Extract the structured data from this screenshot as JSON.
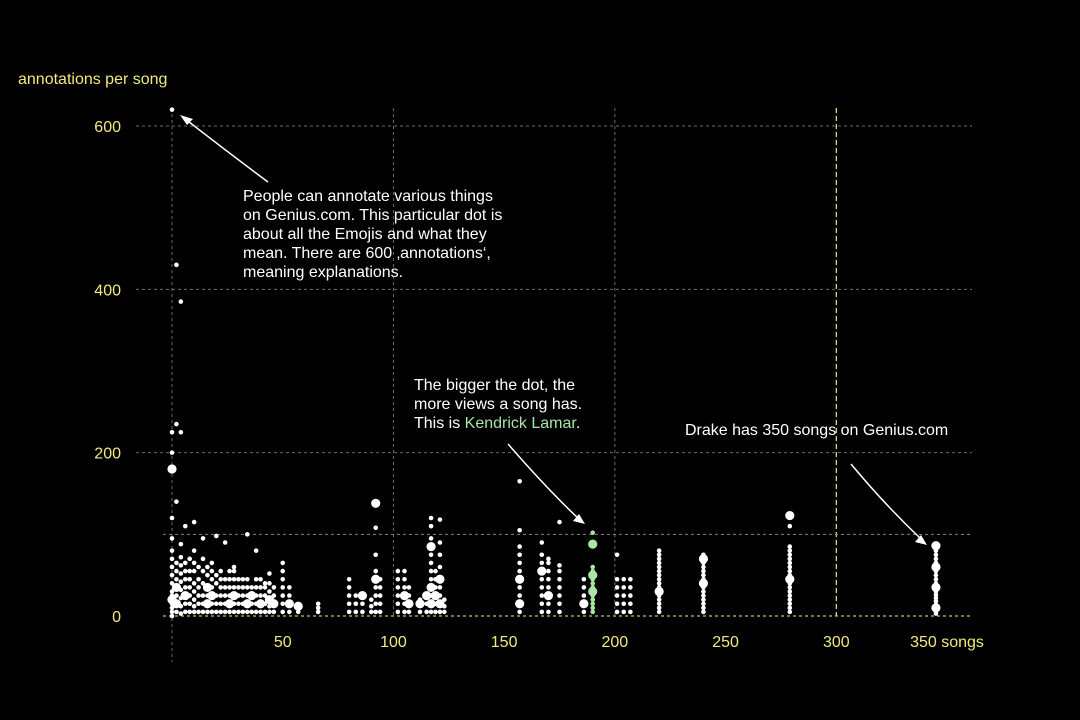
{
  "chart_data": {
    "type": "scatter",
    "title": "",
    "ylabel": "annotations per song",
    "xlabel": "",
    "xlim": [
      -4,
      362
    ],
    "ylim": [
      0,
      620
    ],
    "x_ticks": [
      50,
      100,
      150,
      200,
      250,
      300
    ],
    "x_tick_last": 350,
    "x_tick_last_label": "350 songs",
    "y_ticks": [
      0,
      200,
      400,
      600
    ],
    "grid": true,
    "size_meaning": "views",
    "colors": {
      "points": "#ffffff",
      "highlight": "#a8e6a2",
      "axis_text": "#f2ea7c",
      "background": "#000000"
    },
    "reference_lines": {
      "x": 300,
      "y": 100
    },
    "columns": [
      {
        "x": 0,
        "ys": [
          0,
          5,
          10,
          15,
          20,
          25,
          30,
          40,
          50,
          60,
          70,
          80,
          95,
          120,
          180,
          200,
          225,
          620
        ],
        "big": [
          20,
          180
        ]
      },
      {
        "x": 2,
        "ys": [
          5,
          15,
          25,
          35,
          45,
          55,
          65,
          140,
          235,
          430
        ],
        "big": [
          15,
          35
        ]
      },
      {
        "x": 4,
        "ys": [
          3,
          12,
          22,
          32,
          42,
          52,
          62,
          72,
          88,
          225,
          385
        ],
        "big": [
          20
        ]
      },
      {
        "x": 6,
        "ys": [
          5,
          15,
          25,
          35,
          45,
          55,
          65,
          110
        ],
        "big": [
          25
        ]
      },
      {
        "x": 8,
        "ys": [
          5,
          15,
          25,
          35,
          45,
          55,
          70
        ],
        "big": [
          10,
          30
        ]
      },
      {
        "x": 10,
        "ys": [
          5,
          12,
          20,
          30,
          40,
          55,
          65,
          80,
          115
        ],
        "big": [
          18
        ]
      },
      {
        "x": 12,
        "ys": [
          5,
          15,
          25,
          35,
          45,
          60
        ],
        "big": [
          12
        ]
      },
      {
        "x": 14,
        "ys": [
          5,
          15,
          25,
          40,
          55,
          70,
          95
        ],
        "big": [
          20
        ]
      },
      {
        "x": 16,
        "ys": [
          5,
          15,
          25,
          35,
          50,
          60
        ],
        "big": [
          15,
          35
        ]
      },
      {
        "x": 18,
        "ys": [
          5,
          15,
          25,
          35,
          45,
          55,
          65
        ],
        "big": [
          25
        ]
      },
      {
        "x": 20,
        "ys": [
          5,
          15,
          25,
          40,
          50,
          98
        ],
        "big": [
          12
        ]
      },
      {
        "x": 22,
        "ys": [
          5,
          15,
          25,
          35,
          45,
          55
        ],
        "big": [
          20
        ]
      },
      {
        "x": 24,
        "ys": [
          5,
          15,
          25,
          35,
          45,
          90
        ],
        "big": [
          30
        ]
      },
      {
        "x": 26,
        "ys": [
          5,
          15,
          25,
          35,
          45,
          55
        ],
        "big": [
          15
        ]
      },
      {
        "x": 28,
        "ys": [
          5,
          15,
          25,
          35,
          45,
          55,
          60
        ],
        "big": [
          25
        ]
      },
      {
        "x": 30,
        "ys": [
          5,
          15,
          25,
          35,
          45
        ],
        "big": [
          10
        ]
      },
      {
        "x": 32,
        "ys": [
          5,
          15,
          25,
          35,
          45
        ],
        "big": [
          20
        ]
      },
      {
        "x": 34,
        "ys": [
          5,
          15,
          25,
          35,
          45,
          100
        ],
        "big": [
          15
        ]
      },
      {
        "x": 36,
        "ys": [
          5,
          15,
          25,
          35
        ],
        "big": [
          25
        ]
      },
      {
        "x": 38,
        "ys": [
          5,
          15,
          25,
          35,
          45,
          80
        ],
        "big": [
          20
        ]
      },
      {
        "x": 40,
        "ys": [
          5,
          15,
          25,
          35,
          45
        ],
        "big": [
          15
        ]
      },
      {
        "x": 42,
        "ys": [
          5,
          15,
          25,
          35,
          40
        ],
        "big": [
          30
        ]
      },
      {
        "x": 44,
        "ys": [
          5,
          12,
          20,
          30,
          40,
          52
        ],
        "big": [
          20
        ]
      },
      {
        "x": 46,
        "ys": [
          5,
          15,
          25,
          35
        ],
        "big": [
          15
        ]
      },
      {
        "x": 50,
        "ys": [
          5,
          15,
          25,
          35,
          45,
          55,
          65
        ],
        "big": [
          20
        ]
      },
      {
        "x": 53,
        "ys": [
          5,
          15,
          25,
          35
        ],
        "big": [
          15
        ]
      },
      {
        "x": 57,
        "ys": [
          5,
          12
        ],
        "big": [
          12
        ]
      },
      {
        "x": 66,
        "ys": [
          5,
          10,
          15
        ],
        "big": []
      },
      {
        "x": 80,
        "ys": [
          5,
          15,
          25,
          35,
          45
        ],
        "big": []
      },
      {
        "x": 83,
        "ys": [
          5,
          15,
          25
        ],
        "big": []
      },
      {
        "x": 86,
        "ys": [
          5,
          15,
          25
        ],
        "big": [
          25
        ]
      },
      {
        "x": 90,
        "ys": [
          5,
          12,
          20
        ],
        "big": []
      },
      {
        "x": 92,
        "ys": [
          5,
          15,
          25,
          35,
          45,
          55,
          75,
          108,
          138
        ],
        "big": [
          45,
          138
        ]
      },
      {
        "x": 94,
        "ys": [
          5,
          15,
          25,
          35,
          45
        ],
        "big": [
          40
        ]
      },
      {
        "x": 102,
        "ys": [
          5,
          15,
          25,
          35,
          45,
          55
        ],
        "big": []
      },
      {
        "x": 105,
        "ys": [
          5,
          15,
          25,
          35,
          45,
          55
        ],
        "big": [
          25
        ]
      },
      {
        "x": 107,
        "ys": [
          5,
          15,
          25,
          35
        ],
        "big": [
          15
        ]
      },
      {
        "x": 112,
        "ys": [
          5,
          15,
          20
        ],
        "big": [
          15
        ]
      },
      {
        "x": 115,
        "ys": [
          5,
          15,
          25
        ],
        "big": [
          25
        ]
      },
      {
        "x": 117,
        "ys": [
          5,
          15,
          25,
          35,
          45,
          55,
          65,
          75,
          85,
          95,
          110,
          120
        ],
        "big": [
          15,
          35,
          85
        ]
      },
      {
        "x": 119,
        "ys": [
          5,
          15,
          25,
          35,
          45,
          55
        ],
        "big": [
          25
        ]
      },
      {
        "x": 121,
        "ys": [
          5,
          15,
          25,
          35,
          45,
          60,
          75,
          90,
          118
        ],
        "big": [
          15,
          45
        ]
      },
      {
        "x": 123,
        "ys": [
          5,
          12,
          20
        ],
        "big": [
          15
        ]
      },
      {
        "x": 157,
        "ys": [
          5,
          15,
          25,
          35,
          45,
          55,
          65,
          75,
          85,
          105,
          165
        ],
        "big": [
          15,
          45
        ]
      },
      {
        "x": 167,
        "ys": [
          5,
          15,
          25,
          35,
          45,
          55,
          65,
          75,
          90
        ],
        "big": [
          55
        ]
      },
      {
        "x": 170,
        "ys": [
          5,
          15,
          25,
          35,
          45,
          55,
          65,
          70
        ],
        "big": [
          25
        ]
      },
      {
        "x": 175,
        "ys": [
          5,
          15,
          25,
          35,
          45,
          55,
          62,
          115
        ],
        "big": [
          30
        ]
      },
      {
        "x": 186,
        "ys": [
          5,
          15,
          25,
          35,
          45
        ],
        "big": [
          15
        ]
      },
      {
        "x": 201,
        "ys": [
          5,
          15,
          25,
          35,
          45,
          75
        ],
        "big": [
          30
        ]
      },
      {
        "x": 204,
        "ys": [
          5,
          15,
          25,
          35,
          45
        ],
        "big": [
          30
        ]
      },
      {
        "x": 207,
        "ys": [
          5,
          15,
          25,
          35,
          45
        ],
        "big": []
      },
      {
        "x": 220,
        "ys": [
          5,
          10,
          15,
          20,
          25,
          30,
          35,
          40,
          45,
          50,
          55,
          60,
          65,
          70,
          75,
          80
        ],
        "big": [
          30
        ]
      },
      {
        "x": 240,
        "ys": [
          5,
          10,
          15,
          20,
          25,
          30,
          35,
          40,
          45,
          50,
          55,
          60,
          65,
          70,
          75
        ],
        "big": [
          40,
          70
        ]
      },
      {
        "x": 279,
        "ys": [
          5,
          10,
          15,
          20,
          25,
          30,
          35,
          40,
          45,
          50,
          55,
          60,
          65,
          70,
          75,
          80,
          85,
          110,
          123
        ],
        "big": [
          45,
          123
        ]
      },
      {
        "x": 345,
        "ys": [
          3,
          6,
          10,
          14,
          18,
          22,
          26,
          30,
          35,
          40,
          45,
          50,
          55,
          60,
          65,
          70,
          75,
          80,
          86
        ],
        "big": [
          10,
          20,
          35,
          60,
          86
        ]
      }
    ],
    "highlight": {
      "x": 190,
      "ys": [
        5,
        10,
        15,
        20,
        25,
        30,
        35,
        40,
        45,
        50,
        55,
        60,
        88,
        102
      ],
      "big": [
        30,
        50,
        88
      ]
    }
  },
  "annotations": {
    "emoji_lines": [
      "People can annotate various things",
      "on Genius.com. This particular dot is",
      "about all the Emojis and what they",
      "mean. There are 600 ‚annotations‘,",
      "meaning explanations."
    ],
    "kendrick_lines": [
      "The bigger the dot, the",
      "more views a song has."
    ],
    "kendrick_prefix": "This  is ",
    "kendrick_name": "Kendrick Lamar",
    "kendrick_suffix": ".",
    "drake": "Drake has 350 songs on Genius.com"
  }
}
